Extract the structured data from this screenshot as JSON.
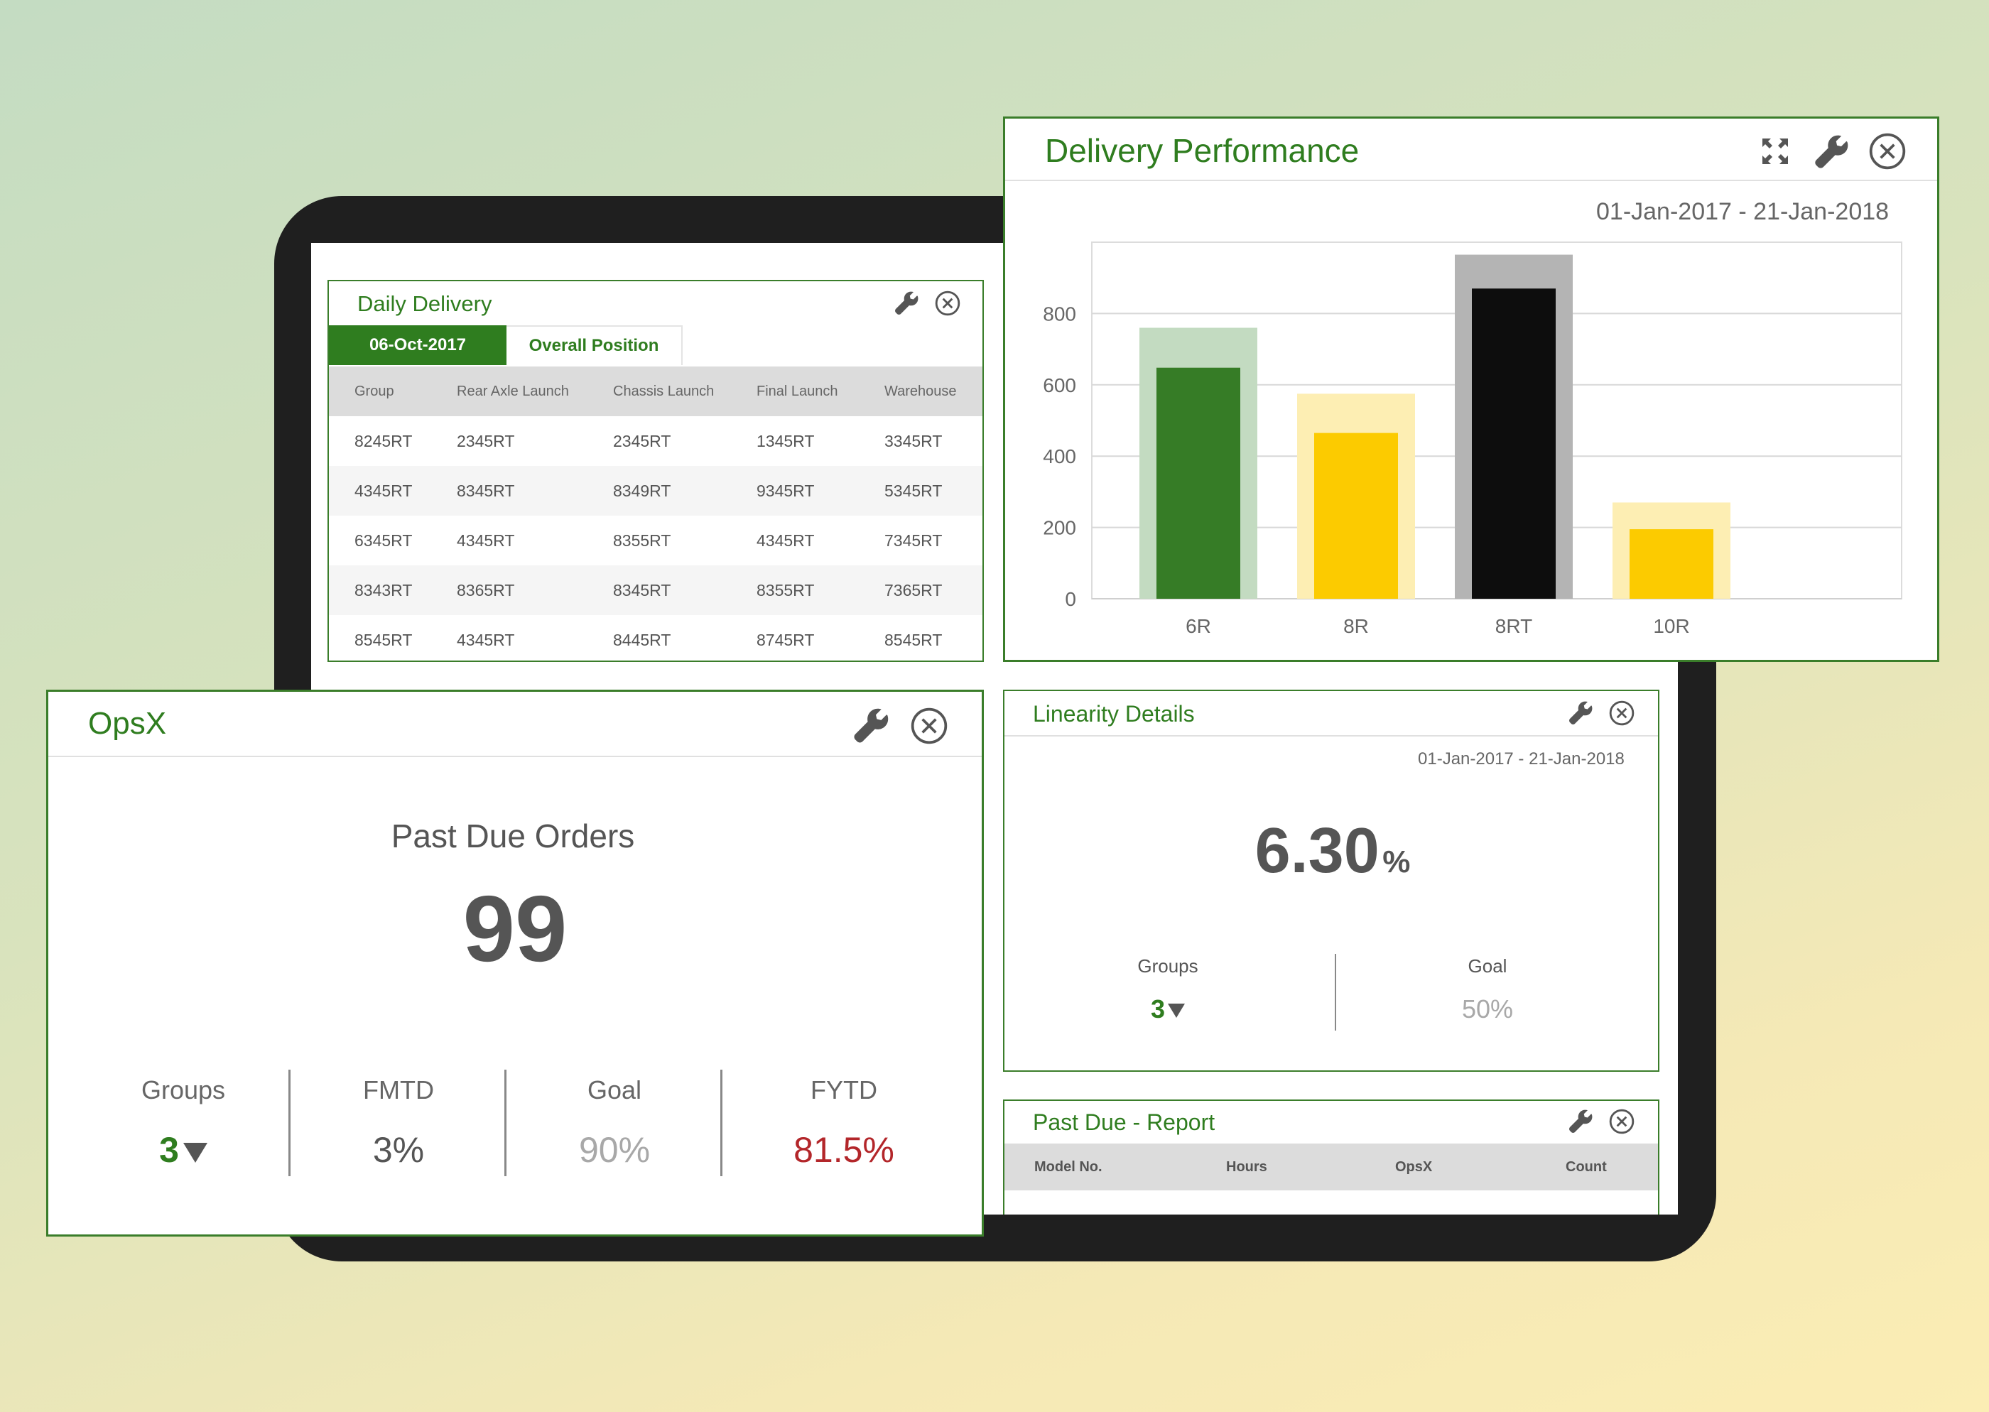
{
  "daily_delivery": {
    "title": "Daily Delivery",
    "tabs": [
      {
        "label": "06-Oct-2017"
      },
      {
        "label": "Overall Position"
      }
    ],
    "columns": [
      "Group",
      "Rear Axle Launch",
      "Chassis Launch",
      "Final Launch",
      "Warehouse"
    ],
    "rows": [
      [
        "8245RT",
        "2345RT",
        "2345RT",
        "1345RT",
        "3345RT"
      ],
      [
        "4345RT",
        "8345RT",
        "8349RT",
        "9345RT",
        "5345RT"
      ],
      [
        "6345RT",
        "4345RT",
        "8355RT",
        "4345RT",
        "7345RT"
      ],
      [
        "8343RT",
        "8365RT",
        "8345RT",
        "8355RT",
        "7365RT"
      ],
      [
        "8545RT",
        "4345RT",
        "8445RT",
        "8745RT",
        "8545RT"
      ]
    ],
    "icons": [
      "wrench-icon",
      "close-circle-icon"
    ]
  },
  "delivery_performance": {
    "title": "Delivery Performance",
    "date_range": "01-Jan-2017 - 21-Jan-2018",
    "icons": [
      "expand-icon",
      "wrench-icon",
      "close-circle-icon"
    ]
  },
  "chart_data": {
    "type": "bar",
    "categories": [
      "6R",
      "8R",
      "8RT",
      "10R"
    ],
    "series": [
      {
        "values": [
          760,
          575,
          965,
          270
        ],
        "colors": [
          "#c3dbc1",
          "#fdeeb3",
          "#b4b4b4",
          "#fdeeb3"
        ]
      },
      {
        "values": [
          648,
          465,
          870,
          195
        ],
        "colors": [
          "#367c26",
          "#fccb00",
          "#0d0d0d",
          "#fccb00"
        ]
      }
    ],
    "y_ticks": [
      0,
      200,
      400,
      600,
      800
    ],
    "ylim": [
      0,
      1000
    ],
    "grid": true,
    "title": "",
    "xlabel": "",
    "ylabel": ""
  },
  "opsx": {
    "title": "OpsX",
    "metric_label": "Past Due Orders",
    "metric_value": "99",
    "stats": [
      {
        "label": "Groups",
        "value": "3",
        "color": "#2f7d1f",
        "has_arrow": true
      },
      {
        "label": "FMTD",
        "value": "3%",
        "color": "#555555",
        "has_arrow": false
      },
      {
        "label": "Goal",
        "value": "90%",
        "color": "#a8a8a8",
        "has_arrow": false
      },
      {
        "label": "FYTD",
        "value": "81.5%",
        "color": "#b3262a",
        "has_arrow": false
      }
    ],
    "icons": [
      "wrench-icon",
      "close-circle-icon"
    ]
  },
  "linearity": {
    "title": "Linearity Details",
    "date_range": "01-Jan-2017 - 21-Jan-2018",
    "value": "6.30",
    "unit": "%",
    "stats": [
      {
        "label": "Groups",
        "value": "3",
        "color": "#2f7d1f"
      },
      {
        "label": "Goal",
        "value": "50%",
        "color": "#a8a8a8"
      }
    ],
    "icons": [
      "wrench-icon",
      "close-circle-icon"
    ]
  },
  "past_due_report": {
    "title": "Past Due - Report",
    "columns": [
      "Model No.",
      "Hours",
      "OpsX",
      "Count"
    ],
    "icons": [
      "wrench-icon",
      "close-circle-icon"
    ]
  },
  "colors": {
    "brand_green": "#2f7d1f",
    "alert_red": "#b3262a",
    "muted_gray": "#a8a8a8"
  }
}
